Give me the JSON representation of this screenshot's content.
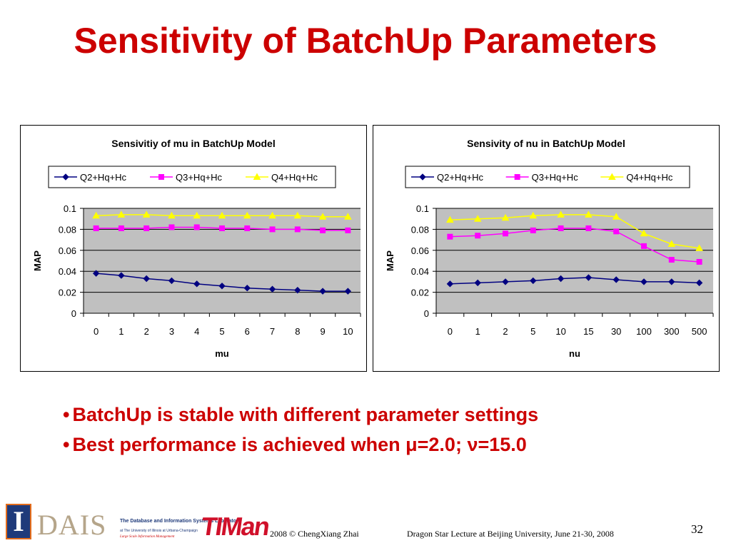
{
  "slide": {
    "title": "Sensitivity of BatchUp Parameters",
    "bullets": [
      "BatchUp is stable with different parameter settings",
      "Best performance is achieved when μ=2.0; ν=15.0"
    ],
    "bullet_glyph": "•"
  },
  "footer": {
    "dais_logo_text": "DAIS",
    "dais_lab": "The Database and Information Systems Laboratory",
    "dais_sub1": "at The University of Illinois at Urbana-Champaign",
    "dais_sub2": "Large Scale Information Management",
    "illinois_mark": "I",
    "timan_logo_text": "TIMan",
    "copyright": "2008  © ChengXiang Zhai",
    "lecture": "Dragon Star Lecture at Beijing University, June 21-30, 2008",
    "page_number": "32"
  },
  "colors": {
    "title": "#cc0000",
    "plot_bg": "#c0c0c0",
    "Q2": "#000080",
    "Q3": "#ff00ff",
    "Q4": "#ffff00"
  },
  "chart_data": [
    {
      "type": "line",
      "title": "Sensivitiy of mu in BatchUp Model",
      "xlabel": "mu",
      "ylabel": "MAP",
      "categories": [
        "0",
        "1",
        "2",
        "3",
        "4",
        "5",
        "6",
        "7",
        "8",
        "9",
        "10"
      ],
      "ylim": [
        0,
        0.1
      ],
      "yticks": [
        "0",
        "0.02",
        "0.04",
        "0.06",
        "0.08",
        "0.1"
      ],
      "grid": true,
      "legend": "top",
      "series": [
        {
          "name": "Q2+Hq+Hc",
          "marker": "diamond",
          "values": [
            0.038,
            0.036,
            0.033,
            0.031,
            0.028,
            0.026,
            0.024,
            0.023,
            0.022,
            0.021,
            0.021
          ]
        },
        {
          "name": "Q3+Hq+Hc",
          "marker": "square",
          "values": [
            0.081,
            0.081,
            0.081,
            0.082,
            0.082,
            0.081,
            0.081,
            0.08,
            0.08,
            0.079,
            0.079
          ]
        },
        {
          "name": "Q4+Hq+Hc",
          "marker": "triangle",
          "values": [
            0.093,
            0.094,
            0.094,
            0.093,
            0.093,
            0.093,
            0.093,
            0.093,
            0.093,
            0.092,
            0.092
          ]
        }
      ]
    },
    {
      "type": "line",
      "title": "Sensivity of nu in BatchUp Model",
      "xlabel": "nu",
      "ylabel": "MAP",
      "categories": [
        "0",
        "1",
        "2",
        "5",
        "10",
        "15",
        "30",
        "100",
        "300",
        "500"
      ],
      "ylim": [
        0,
        0.1
      ],
      "yticks": [
        "0",
        "0.02",
        "0.04",
        "0.06",
        "0.08",
        "0.1"
      ],
      "grid": true,
      "legend": "top",
      "series": [
        {
          "name": "Q2+Hq+Hc",
          "marker": "diamond",
          "values": [
            0.028,
            0.029,
            0.03,
            0.031,
            0.033,
            0.034,
            0.032,
            0.03,
            0.03,
            0.029
          ]
        },
        {
          "name": "Q3+Hq+Hc",
          "marker": "square",
          "values": [
            0.073,
            0.074,
            0.076,
            0.079,
            0.081,
            0.081,
            0.078,
            0.064,
            0.051,
            0.049
          ]
        },
        {
          "name": "Q4+Hq+Hc",
          "marker": "triangle",
          "values": [
            0.089,
            0.09,
            0.091,
            0.093,
            0.094,
            0.094,
            0.092,
            0.076,
            0.066,
            0.062
          ]
        }
      ]
    }
  ]
}
